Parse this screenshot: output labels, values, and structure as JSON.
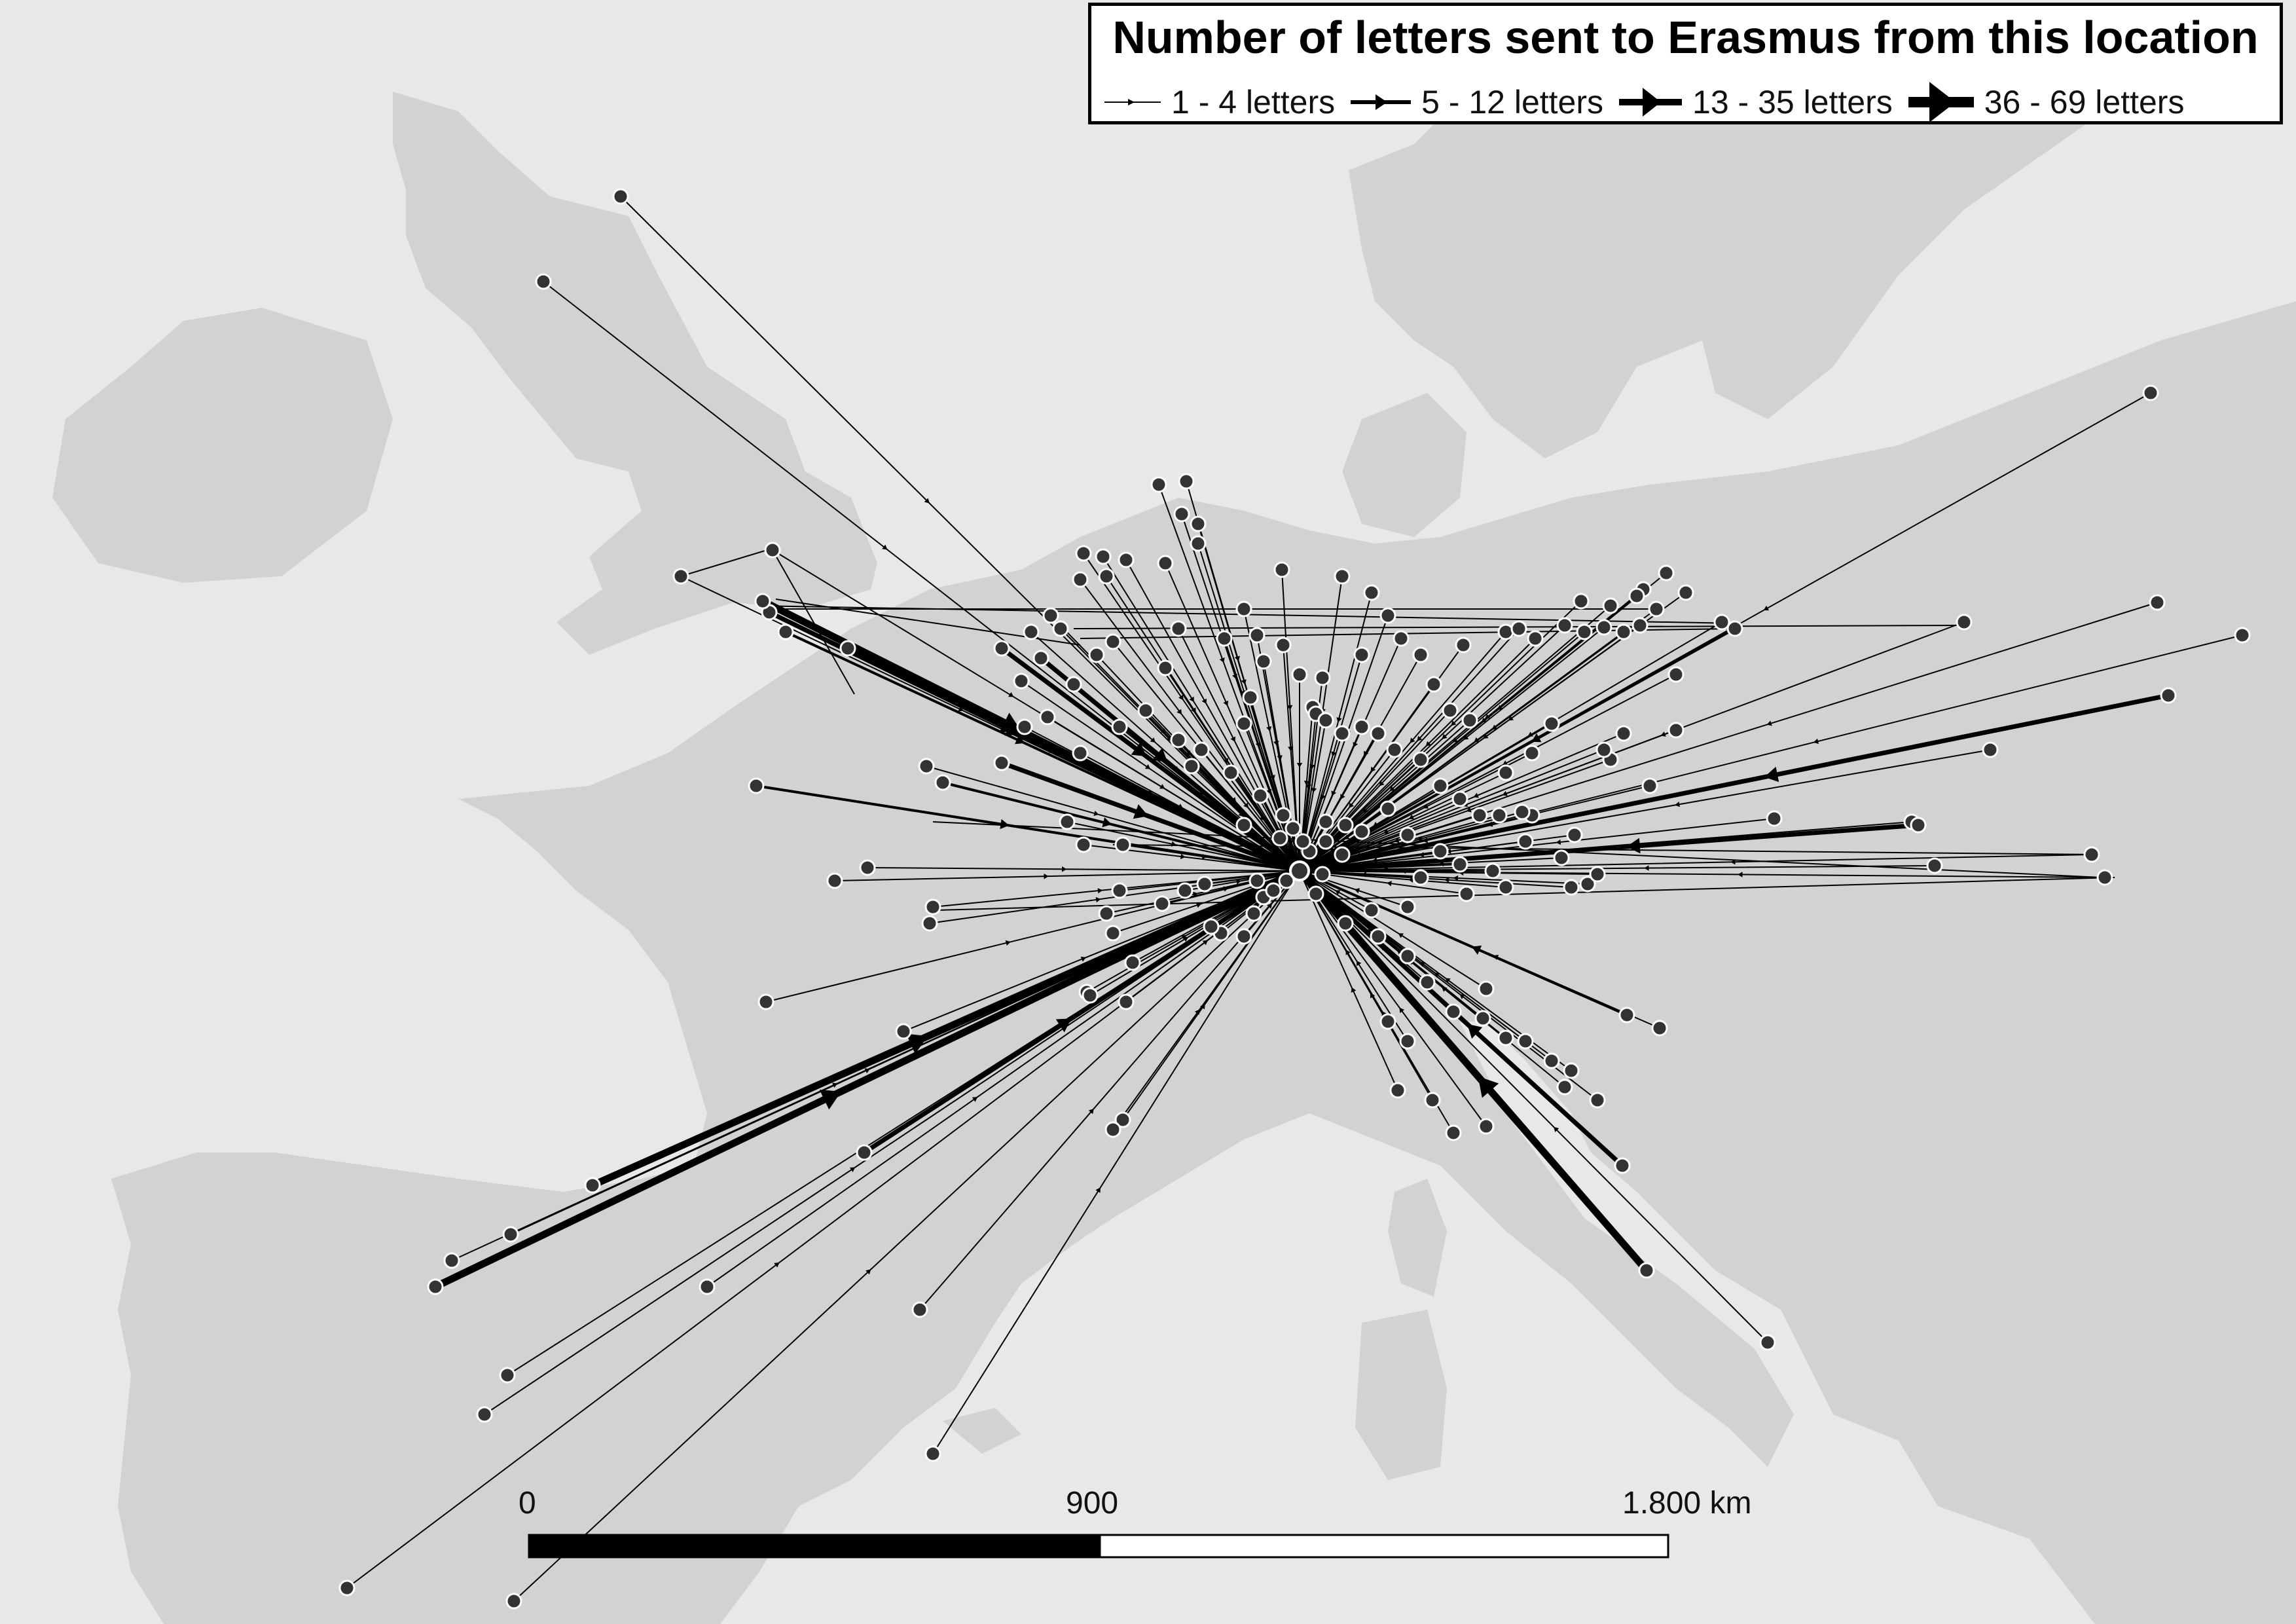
{
  "legend": {
    "title": "Number of letters sent to Erasmus from this location",
    "classes": [
      {
        "label": "1 - 4 letters",
        "weight": 1
      },
      {
        "label": "5 - 12 letters",
        "weight": 2
      },
      {
        "label": "13 - 35 letters",
        "weight": 3
      },
      {
        "label": "36 - 69 letters",
        "weight": 4
      }
    ]
  },
  "scale_bar": {
    "labels": [
      "0",
      "900",
      "1.800 km"
    ]
  },
  "colors": {
    "sea": "#e8e8e8",
    "land": "#d2d2d2",
    "lines": "#000000",
    "nodes": "#333333",
    "node_outline": "#ffffff"
  }
}
